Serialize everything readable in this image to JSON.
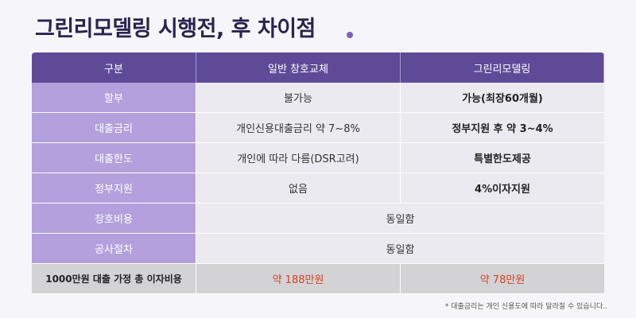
{
  "title": "그린리모델링 시행전, 후 차이점",
  "columns": [
    "구분",
    "일반 창호교체",
    "그린리모델링"
  ],
  "rows": [
    {
      "label": "할부",
      "general": "불가능",
      "green": "가능(최장60개월)"
    },
    {
      "label": "대출금리",
      "general": "개인신용대출금리 약 7~8%",
      "green": "정부지원 후 약 3~4%"
    },
    {
      "label": "대출한도",
      "general": "개인에 따라 다름(DSR고려)",
      "green": "특별한도제공"
    },
    {
      "label": "정부지원",
      "general": "없음",
      "green": "4%이자지원"
    },
    {
      "label": "창호비용",
      "merged": "동일함"
    },
    {
      "label": "공사절차",
      "merged": "동일함"
    }
  ],
  "footer": {
    "label": "1000만원 대출 가정 총 이자비용",
    "general": "약 188만원",
    "green": "약 78만원"
  },
  "note": "* 대출금리는 개인 신용도에 따라 달라질 수 있습니다..",
  "colors": {
    "header": "#5f4a98",
    "label": "#b3a0dc",
    "accent": "#d6411f"
  }
}
